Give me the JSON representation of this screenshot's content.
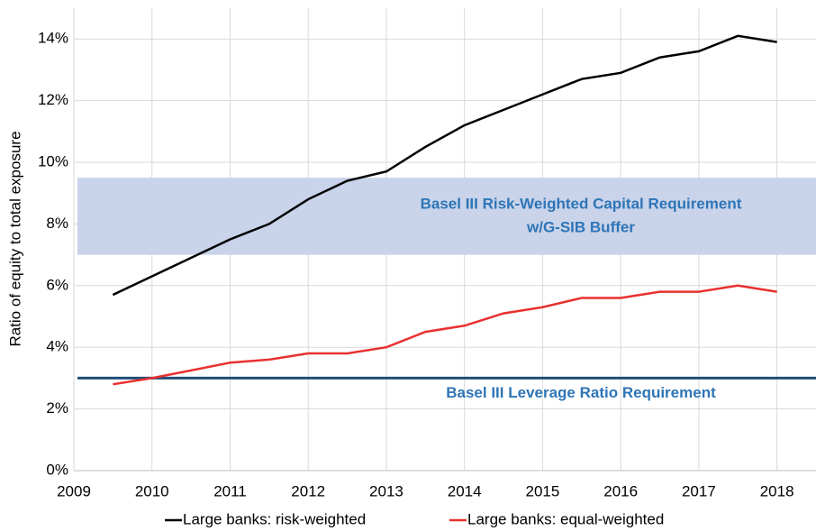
{
  "chart_data": {
    "type": "line",
    "y_label": "Ratio of equity to total exposure",
    "x": [
      2009.5,
      2010,
      2010.5,
      2011,
      2011.5,
      2012,
      2012.5,
      2013,
      2013.5,
      2014,
      2014.5,
      2015,
      2015.5,
      2016,
      2016.5,
      2017,
      2017.5,
      2018
    ],
    "series": [
      {
        "name": "Large banks: risk-weighted",
        "color": "#000000",
        "values": [
          5.7,
          6.3,
          6.9,
          7.5,
          8.0,
          8.8,
          9.4,
          9.7,
          10.5,
          11.2,
          11.7,
          12.2,
          12.7,
          12.9,
          13.4,
          13.6,
          14.1,
          13.9
        ]
      },
      {
        "name": "Large banks: equal-weighted",
        "color": "#e8312f",
        "values": [
          2.8,
          3.0,
          3.25,
          3.5,
          3.6,
          3.8,
          3.8,
          4.0,
          4.5,
          4.7,
          5.1,
          5.3,
          5.6,
          5.6,
          5.8,
          5.8,
          6.0,
          5.8
        ]
      }
    ],
    "annotations": [
      {
        "text": [
          "Basel III Risk-Weighted Capital Requirement",
          "w/G-SIB Buffer"
        ],
        "ymin": 7,
        "ymax": 9.5,
        "color": "#c9d3ea"
      },
      {
        "text": "Basel III Leverage Ratio Requirement",
        "y": 3,
        "color": "#1f4e79"
      }
    ],
    "xlim": [
      2009,
      2018.5
    ],
    "xticks": [
      2009,
      2010,
      2011,
      2012,
      2013,
      2014,
      2015,
      2016,
      2017,
      2018
    ],
    "ylim": [
      0,
      15
    ],
    "yticks": [
      {
        "value": 0,
        "label": "0%"
      },
      {
        "value": 2,
        "label": "2%"
      },
      {
        "value": 4,
        "label": "4%"
      },
      {
        "value": 6,
        "label": "6%"
      },
      {
        "value": 8,
        "label": "8%"
      },
      {
        "value": 10,
        "label": "10%"
      },
      {
        "value": 12,
        "label": "12%"
      },
      {
        "value": 14,
        "label": "14%"
      }
    ],
    "grid": true,
    "legend": "bottom"
  }
}
